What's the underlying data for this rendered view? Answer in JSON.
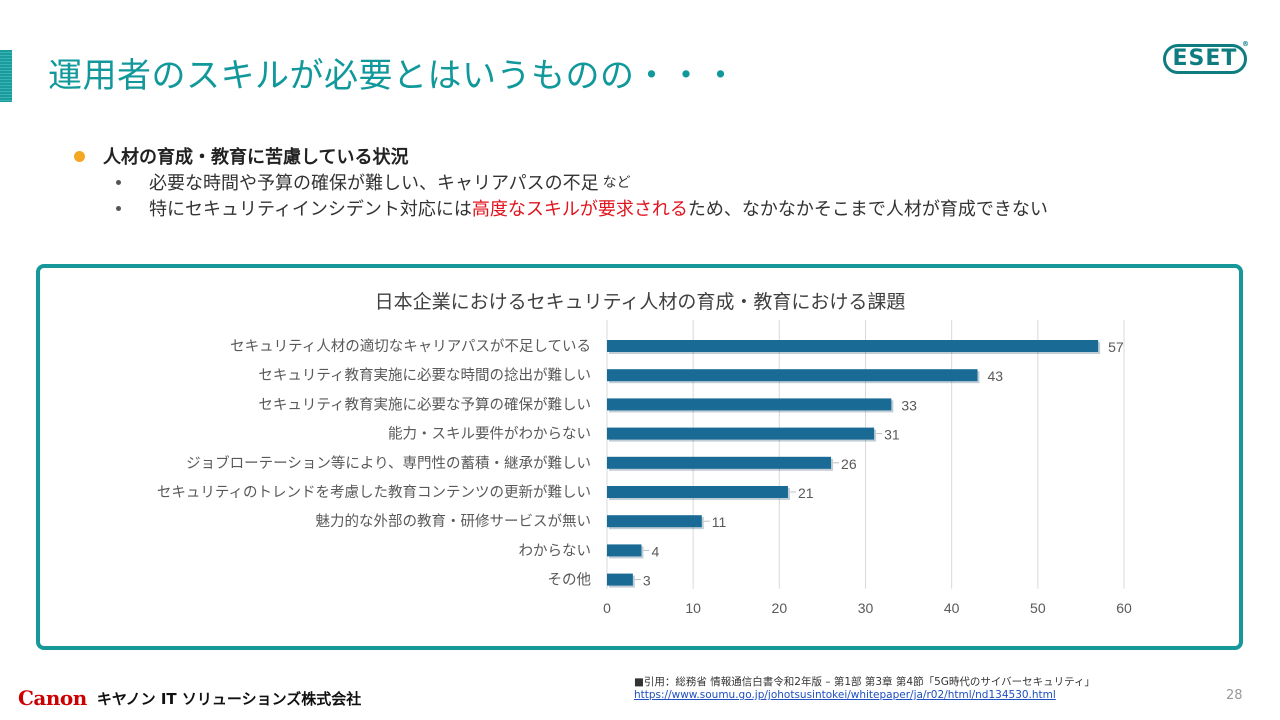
{
  "slide": {
    "title": "運用者のスキルが必要とはいうものの・・・",
    "brand_logo": "ESET",
    "page_number": "28"
  },
  "bullets": {
    "main": "人材の育成・教育に苦慮している状況",
    "sub1_text": "必要な時間や予算の確保が難しい、キャリアパスの不足",
    "sub1_small": "など",
    "sub2_pre": "特にセキュリティインシデント対応には",
    "sub2_highlight": "高度なスキルが要求される",
    "sub2_post": "ため、なかなかそこまで人材が育成できない"
  },
  "footer": {
    "citation": "■引用：総務省 情報通信白書令和2年版 – 第1部 第3章 第4節「5G時代のサイバーセキュリティ」",
    "url": "https://www.soumu.go.jp/johotsusintokei/whitepaper/ja/r02/html/nd134530.html",
    "company_logo": "Canon",
    "company_name": "キヤノン IT ソリューションズ株式会社"
  },
  "colors": {
    "accent": "#16979a",
    "bar": "#1a6a96",
    "highlight": "#e0141e",
    "bullet": "#f5a623"
  },
  "chart_data": {
    "type": "bar",
    "orientation": "horizontal",
    "title": "日本企業におけるセキュリティ人材の育成・教育における課題",
    "categories": [
      "セキュリティ人材の適切なキャリアパスが不足している",
      "セキュリティ教育実施に必要な時間の捻出が難しい",
      "セキュリティ教育実施に必要な予算の確保が難しい",
      "能力・スキル要件がわからない",
      "ジョブローテーション等により、専門性の蓄積・継承が難しい",
      "セキュリティのトレンドを考慮した教育コンテンツの更新が難しい",
      "魅力的な外部の教育・研修サービスが無い",
      "わからない",
      "その他"
    ],
    "values": [
      57,
      43,
      33,
      31,
      26,
      21,
      11,
      4,
      3
    ],
    "xlim": [
      0,
      60
    ],
    "xticks": [
      "0",
      "10",
      "20",
      "30",
      "40",
      "50",
      "60"
    ],
    "xlabel": "",
    "ylabel": "",
    "grid": true,
    "legend": "none"
  }
}
